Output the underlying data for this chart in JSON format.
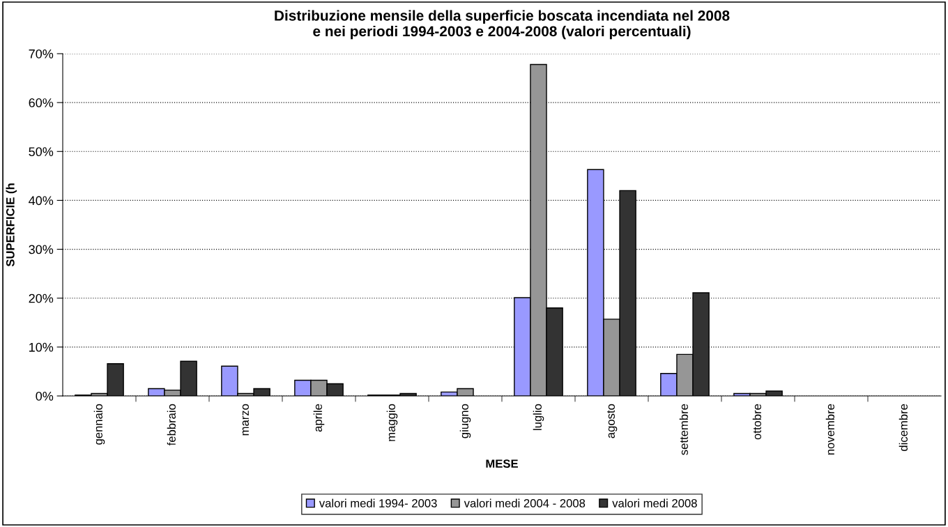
{
  "chart_data": {
    "type": "bar",
    "title": "Distribuzione mensile della superficie boscata incendiata nel 2008\ne nei periodi 1994-2003 e 2004-2008 (valori percentuali)",
    "xlabel": "MESE",
    "ylabel": "SUPERFICIE (h",
    "categories": [
      "gennaio",
      "febbraio",
      "marzo",
      "aprile",
      "maggio",
      "giugno",
      "luglio",
      "agosto",
      "settembre",
      "ottobre",
      "novembre",
      "dicembre"
    ],
    "series": [
      {
        "name": "valori medi 1994- 2003",
        "color": "#9999ff",
        "values": [
          0.2,
          1.5,
          6.1,
          3.2,
          0.2,
          0.8,
          20.1,
          46.3,
          4.6,
          0.5,
          0,
          0
        ]
      },
      {
        "name": "valori medi 2004 - 2008",
        "color": "#969696",
        "values": [
          0.5,
          1.2,
          0.5,
          3.2,
          0.2,
          1.5,
          67.8,
          15.7,
          8.5,
          0.5,
          0,
          0
        ]
      },
      {
        "name": "valori medi 2008",
        "color": "#333333",
        "values": [
          6.6,
          7.1,
          1.5,
          2.5,
          0.5,
          0,
          18.0,
          42.0,
          21.1,
          1.0,
          0,
          0
        ]
      }
    ],
    "ylim": [
      0,
      70
    ],
    "yticks": [
      {
        "value": 0,
        "label": "0%"
      },
      {
        "value": 10,
        "label": "10%"
      },
      {
        "value": 20,
        "label": "20%"
      },
      {
        "value": 30,
        "label": "30%"
      },
      {
        "value": 40,
        "label": "40%"
      },
      {
        "value": 50,
        "label": "50%"
      },
      {
        "value": 60,
        "label": "60%"
      },
      {
        "value": 70,
        "label": "70%"
      }
    ],
    "grid": "y",
    "legend": "bottom"
  }
}
